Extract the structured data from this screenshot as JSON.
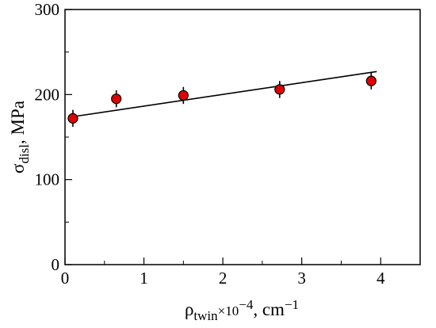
{
  "chart_data": {
    "type": "scatter",
    "x_label": {
      "symbol": "ρ",
      "subscript": "twin",
      "mid": "×10",
      "exponent": "−4",
      "tail": ", cm",
      "unit_exponent": "−1"
    },
    "y_label": {
      "symbol": "σ",
      "subscript": "disl",
      "tail": ",  MPa"
    },
    "x_ticks": [
      "0",
      "1",
      "2",
      "3",
      "4"
    ],
    "y_ticks": [
      "0",
      "100",
      "200",
      "300"
    ],
    "xlim": [
      0,
      4.5
    ],
    "ylim": [
      0,
      300
    ],
    "points": [
      {
        "x": 0.1,
        "y": 172,
        "err": 10
      },
      {
        "x": 0.65,
        "y": 195,
        "err": 10
      },
      {
        "x": 1.5,
        "y": 199,
        "err": 10
      },
      {
        "x": 2.72,
        "y": 206,
        "err": 10
      },
      {
        "x": 3.88,
        "y": 216,
        "err": 10
      }
    ],
    "fit_line": {
      "x": [
        0.1,
        3.95
      ],
      "y": [
        174,
        227
      ]
    },
    "marker_color": "#e00000",
    "marker_edge": "#000000",
    "grid": false
  }
}
